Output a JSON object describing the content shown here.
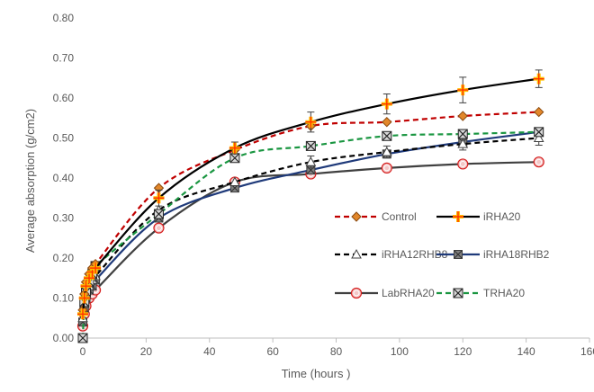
{
  "chart_data": {
    "type": "line",
    "title": "",
    "xlabel": "Time (hours )",
    "ylabel": "Average absorption (g/cm2)",
    "xlim": [
      0,
      160
    ],
    "ylim": [
      0,
      0.8
    ],
    "x_ticks": [
      "0",
      "20",
      "40",
      "60",
      "80",
      "100",
      "120",
      "140",
      "160"
    ],
    "y_ticks": [
      "0.00",
      "0.10",
      "0.20",
      "0.30",
      "0.40",
      "0.50",
      "0.60",
      "0.70",
      "0.80"
    ],
    "grid": false,
    "legend_position": "center-right",
    "x": [
      0,
      0.5,
      1,
      2,
      3,
      4,
      24,
      48,
      72,
      96,
      120,
      144
    ],
    "series": [
      {
        "name": "Control",
        "color": "#c00000",
        "line": "dashed",
        "marker": "diamond",
        "values": [
          0.07,
          0.11,
          0.14,
          0.16,
          0.175,
          0.185,
          0.375,
          0.47,
          0.53,
          0.54,
          0.555,
          0.565
        ]
      },
      {
        "name": "iRHA20",
        "color": "#000000",
        "line": "solid",
        "marker": "plus",
        "values": [
          0.06,
          0.1,
          0.13,
          0.15,
          0.165,
          0.175,
          0.35,
          0.475,
          0.54,
          0.585,
          0.62,
          0.648
        ],
        "errors": [
          0,
          0,
          0,
          0,
          0,
          0,
          0.02,
          0.015,
          0.025,
          0.025,
          0.032,
          0.022
        ]
      },
      {
        "name": "iRHA12RHB8",
        "color": "#000000",
        "line": "dashed",
        "marker": "triangle",
        "values": [
          0.05,
          0.085,
          0.11,
          0.13,
          0.145,
          0.155,
          0.32,
          0.39,
          0.44,
          0.465,
          0.485,
          0.5
        ],
        "errors": [
          0,
          0,
          0,
          0,
          0,
          0,
          0,
          0,
          0.015,
          0.015,
          0.015,
          0.018
        ]
      },
      {
        "name": "iRHA18RHB2",
        "color": "#1f3a7a",
        "line": "solid",
        "marker": "square-x",
        "values": [
          0.04,
          0.075,
          0.1,
          0.12,
          0.13,
          0.145,
          0.3,
          0.375,
          0.42,
          0.46,
          0.49,
          0.515
        ]
      },
      {
        "name": "LabRHA20",
        "color": "#404040",
        "line": "solid",
        "marker": "circle",
        "values": [
          0.03,
          0.06,
          0.08,
          0.1,
          0.11,
          0.12,
          0.275,
          0.39,
          0.41,
          0.425,
          0.435,
          0.44
        ]
      },
      {
        "name": "TRHA20",
        "color": "#1a9641",
        "line": "dashed",
        "marker": "x-square",
        "values": [
          0.0,
          0.09,
          0.115,
          0.14,
          0.16,
          0.18,
          0.31,
          0.45,
          0.48,
          0.505,
          0.51,
          0.515
        ]
      }
    ]
  }
}
